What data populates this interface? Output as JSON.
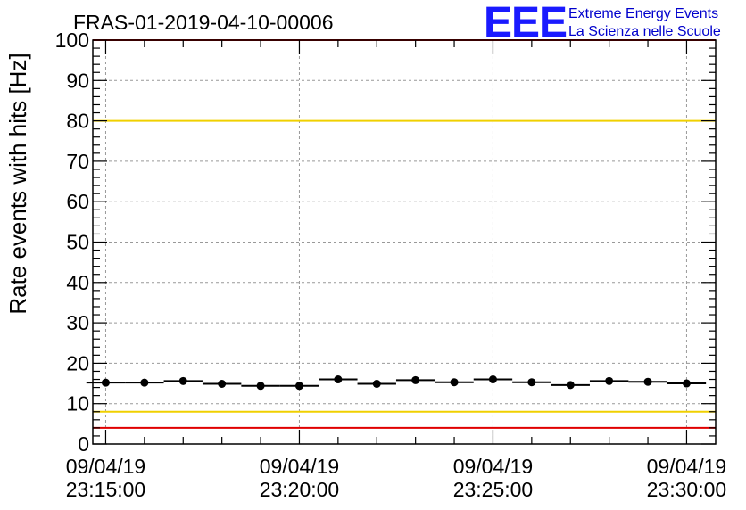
{
  "header": {
    "run_title": "FRAS-01-2019-04-10-00006",
    "logo_letters": "EEE",
    "logo_line1": "Extreme Energy Events",
    "logo_line2": "La Scienza nelle Scuole"
  },
  "colors": {
    "points": "#000000",
    "limit_red": "#e00000",
    "limit_yellow": "#f0d000",
    "grid": "#999999",
    "logo": "#1a1aff"
  },
  "chart_data": {
    "type": "scatter",
    "title": "FRAS-01-2019-04-10-00006",
    "ylabel": "Rate events with hits [Hz]",
    "xlabel": "",
    "ylim": [
      0,
      100
    ],
    "yticks": [
      0,
      10,
      20,
      30,
      40,
      50,
      60,
      70,
      80,
      90,
      100
    ],
    "xlim": [
      "09/04/19 23:14:40",
      "09/04/19 23:30:45"
    ],
    "xticks": [
      {
        "date": "09/04/19",
        "time": "23:15:00"
      },
      {
        "date": "09/04/19",
        "time": "23:20:00"
      },
      {
        "date": "09/04/19",
        "time": "23:25:00"
      },
      {
        "date": "09/04/19",
        "time": "23:30:00"
      }
    ],
    "grid": true,
    "bin_width_seconds": 60,
    "reference_lines": [
      {
        "color": "red",
        "y": 100
      },
      {
        "color": "yellow",
        "y": 80
      },
      {
        "color": "yellow",
        "y": 8
      },
      {
        "color": "red",
        "y": 4
      }
    ],
    "series": [
      {
        "x": [
          "23:15:00",
          "23:16:00",
          "23:17:00",
          "23:18:00",
          "23:19:00",
          "23:20:00",
          "23:21:00",
          "23:22:00",
          "23:23:00",
          "23:24:00",
          "23:25:00",
          "23:26:00",
          "23:27:00",
          "23:28:00",
          "23:29:00",
          "23:30:00"
        ],
        "values": [
          15.2,
          15.2,
          15.6,
          14.9,
          14.4,
          14.4,
          16.0,
          14.9,
          15.8,
          15.3,
          16.0,
          15.3,
          14.6,
          15.6,
          15.4,
          15.0
        ]
      }
    ]
  }
}
